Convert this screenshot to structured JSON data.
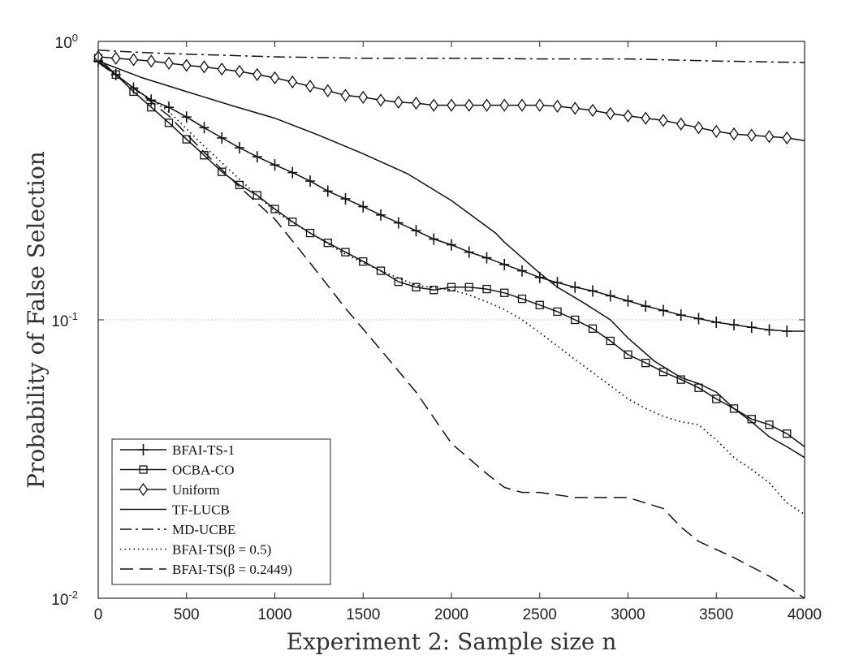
{
  "chart_data": {
    "type": "line",
    "title": "",
    "xlabel": "Experiment 2: Sample size n",
    "ylabel": "Probability of False Selection",
    "yscale": "log",
    "xlim": [
      0,
      4000
    ],
    "ylim": [
      0.01,
      1
    ],
    "grid": "minor-y-dotted",
    "legend_position": "bottom-left",
    "x_ticks": [
      "0",
      "500",
      "1000",
      "1500",
      "2000",
      "2500",
      "3000",
      "3500",
      "4000"
    ],
    "y_ticks": [
      {
        "base": "10",
        "exp": "0"
      },
      {
        "base": "10",
        "exp": "-1"
      },
      {
        "base": "10",
        "exp": "-2"
      }
    ],
    "series": [
      {
        "name": "BFAI-TS-1",
        "line": "solid",
        "marker": "plus",
        "x": [
          0,
          100,
          200,
          300,
          400,
          500,
          600,
          700,
          800,
          900,
          1000,
          1100,
          1200,
          1300,
          1400,
          1500,
          1600,
          1700,
          1800,
          1900,
          2000,
          2100,
          2200,
          2300,
          2400,
          2500,
          2600,
          2700,
          2800,
          2900,
          3000,
          3100,
          3200,
          3300,
          3400,
          3500,
          3600,
          3700,
          3800,
          3900,
          4000
        ],
        "y": [
          0.85,
          0.76,
          0.68,
          0.615,
          0.58,
          0.535,
          0.49,
          0.45,
          0.415,
          0.385,
          0.36,
          0.338,
          0.315,
          0.29,
          0.272,
          0.255,
          0.238,
          0.223,
          0.209,
          0.195,
          0.186,
          0.175,
          0.167,
          0.158,
          0.15,
          0.142,
          0.136,
          0.131,
          0.127,
          0.122,
          0.117,
          0.112,
          0.108,
          0.104,
          0.101,
          0.098,
          0.096,
          0.094,
          0.092,
          0.091,
          0.091
        ]
      },
      {
        "name": "OCBA-CO",
        "line": "solid",
        "marker": "square",
        "x": [
          0,
          100,
          200,
          300,
          400,
          500,
          600,
          700,
          800,
          900,
          1000,
          1100,
          1200,
          1300,
          1400,
          1500,
          1600,
          1700,
          1800,
          1900,
          2000,
          2100,
          2200,
          2300,
          2400,
          2500,
          2600,
          2700,
          2800,
          2900,
          3000,
          3100,
          3200,
          3300,
          3400,
          3500,
          3600,
          3700,
          3800,
          3900,
          4000
        ],
        "y": [
          0.87,
          0.76,
          0.66,
          0.58,
          0.51,
          0.445,
          0.39,
          0.34,
          0.305,
          0.28,
          0.25,
          0.225,
          0.205,
          0.189,
          0.175,
          0.162,
          0.15,
          0.137,
          0.131,
          0.128,
          0.131,
          0.131,
          0.129,
          0.125,
          0.119,
          0.113,
          0.107,
          0.1,
          0.093,
          0.084,
          0.075,
          0.07,
          0.065,
          0.061,
          0.057,
          0.052,
          0.048,
          0.044,
          0.042,
          0.039,
          0.035
        ]
      },
      {
        "name": "Uniform",
        "line": "solid",
        "marker": "diamond",
        "x": [
          0,
          100,
          200,
          300,
          400,
          500,
          600,
          700,
          800,
          900,
          1000,
          1100,
          1200,
          1300,
          1400,
          1500,
          1600,
          1700,
          1800,
          1900,
          2000,
          2100,
          2200,
          2300,
          2400,
          2500,
          2600,
          2700,
          2800,
          2900,
          3000,
          3100,
          3200,
          3300,
          3400,
          3500,
          3600,
          3700,
          3800,
          3900,
          4000
        ],
        "y": [
          0.88,
          0.87,
          0.86,
          0.85,
          0.835,
          0.82,
          0.81,
          0.795,
          0.78,
          0.76,
          0.74,
          0.715,
          0.69,
          0.665,
          0.64,
          0.63,
          0.615,
          0.605,
          0.6,
          0.59,
          0.59,
          0.59,
          0.59,
          0.59,
          0.59,
          0.59,
          0.585,
          0.575,
          0.565,
          0.55,
          0.54,
          0.53,
          0.52,
          0.505,
          0.49,
          0.475,
          0.465,
          0.46,
          0.455,
          0.45,
          0.44
        ]
      },
      {
        "name": "TF-LUCB",
        "line": "solid",
        "marker": "none",
        "x": [
          0,
          250,
          500,
          750,
          1000,
          1250,
          1500,
          1750,
          2000,
          2250,
          2300,
          2500,
          2600,
          2750,
          2900,
          3000,
          3150,
          3300,
          3400,
          3500,
          3600,
          3700,
          3800,
          3900,
          4000
        ],
        "y": [
          0.85,
          0.74,
          0.66,
          0.59,
          0.53,
          0.46,
          0.395,
          0.335,
          0.268,
          0.205,
          0.19,
          0.147,
          0.131,
          0.115,
          0.1,
          0.086,
          0.071,
          0.062,
          0.059,
          0.055,
          0.048,
          0.043,
          0.038,
          0.035,
          0.032
        ]
      },
      {
        "name": "MD-UCBE",
        "line": "dashdot",
        "marker": "none",
        "x": [
          0,
          200,
          500,
          1000,
          1500,
          2000,
          2500,
          3000,
          3500,
          4000
        ],
        "y": [
          0.93,
          0.915,
          0.9,
          0.88,
          0.87,
          0.87,
          0.865,
          0.865,
          0.85,
          0.84
        ]
      },
      {
        "name": "BFAI-TS(β = 0.5)",
        "line": "dotted",
        "marker": "none",
        "x": [
          0,
          200,
          400,
          600,
          800,
          1000,
          1200,
          1400,
          1600,
          1800,
          2000,
          2100,
          2200,
          2300,
          2400,
          2500,
          2700,
          2900,
          3000,
          3100,
          3200,
          3300,
          3400,
          3500,
          3600,
          3700,
          3800,
          3900,
          4000
        ],
        "y": [
          0.84,
          0.68,
          0.56,
          0.42,
          0.32,
          0.245,
          0.205,
          0.172,
          0.15,
          0.133,
          0.128,
          0.123,
          0.116,
          0.109,
          0.1,
          0.09,
          0.072,
          0.058,
          0.052,
          0.048,
          0.045,
          0.043,
          0.042,
          0.037,
          0.032,
          0.029,
          0.026,
          0.022,
          0.02
        ]
      },
      {
        "name": "BFAI-TS(β = 0.2449)",
        "line": "dashed",
        "marker": "none",
        "x": [
          0,
          200,
          400,
          600,
          800,
          1000,
          1200,
          1400,
          1600,
          1800,
          2000,
          2200,
          2300,
          2400,
          2500,
          2700,
          2900,
          3000,
          3200,
          3300,
          3400,
          3600,
          3800,
          3900,
          4000
        ],
        "y": [
          0.84,
          0.68,
          0.54,
          0.4,
          0.3,
          0.23,
          0.16,
          0.11,
          0.078,
          0.055,
          0.036,
          0.028,
          0.025,
          0.024,
          0.024,
          0.023,
          0.023,
          0.023,
          0.021,
          0.018,
          0.016,
          0.014,
          0.012,
          0.011,
          0.01
        ]
      }
    ]
  }
}
